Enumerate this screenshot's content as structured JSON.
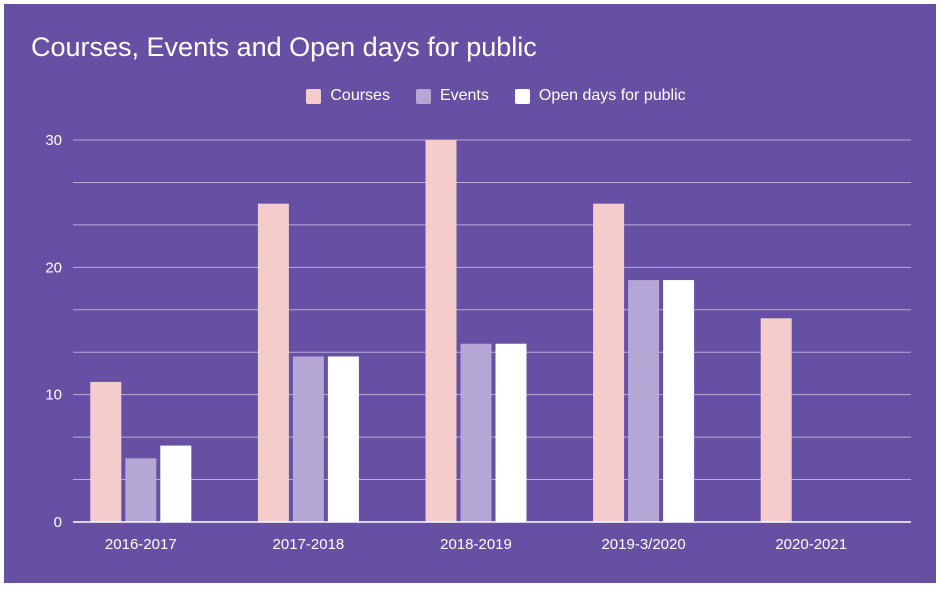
{
  "chart_data": {
    "type": "bar",
    "title": "Courses, Events and Open days for public",
    "categories": [
      "2016-2017",
      "2017-2018",
      "2018-2019",
      "2019-3/2020",
      "2020-2021"
    ],
    "series": [
      {
        "name": "Courses",
        "color": "#F4CCCC",
        "values": [
          11,
          25,
          30,
          25,
          16
        ]
      },
      {
        "name": "Events",
        "color": "#B4A7D6",
        "values": [
          5,
          13,
          14,
          19,
          0
        ]
      },
      {
        "name": "Open days for public",
        "color": "#FFFFFF",
        "values": [
          6,
          13,
          14,
          19,
          0
        ]
      }
    ],
    "ylim": [
      0,
      30
    ],
    "yticks": [
      "0",
      "10",
      "20",
      "30"
    ],
    "legend_position": "top-center",
    "grid": true,
    "xlabel": "",
    "ylabel": ""
  },
  "colors": {
    "background": "#6750A4",
    "gridline": "#B9ADDA",
    "text": "#FFFFFF"
  }
}
